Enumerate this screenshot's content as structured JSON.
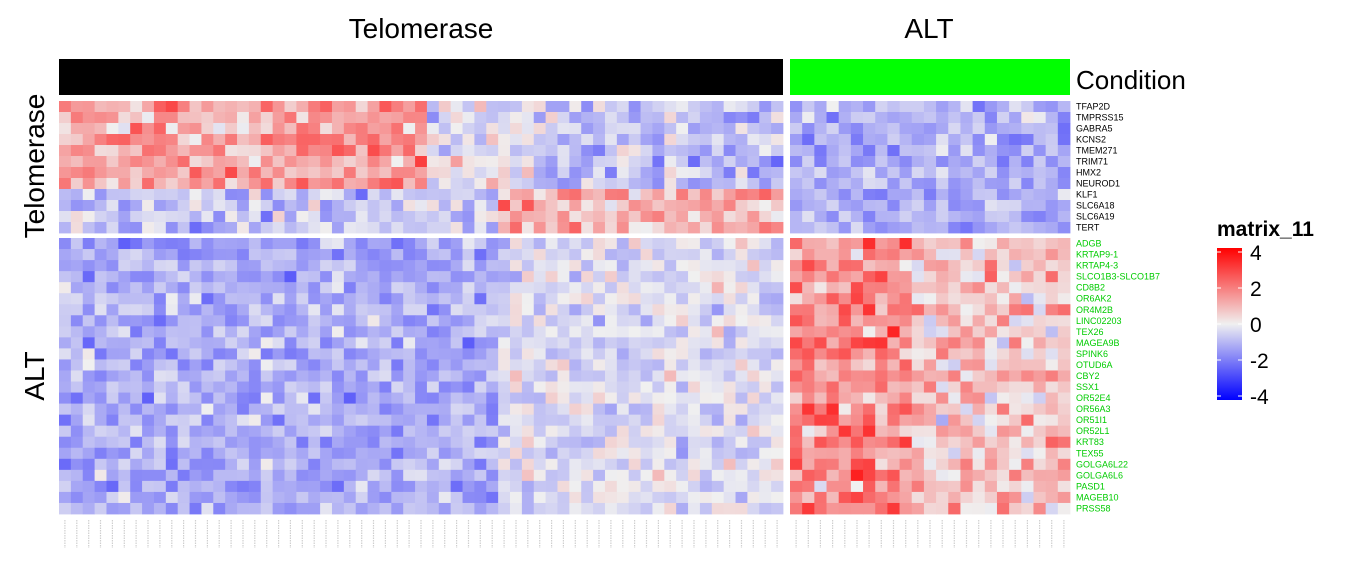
{
  "chart_data": {
    "type": "heatmap",
    "column_groups": [
      {
        "name": "Telomerase",
        "n_samples": 61,
        "annotation_color": "#000000"
      },
      {
        "name": "ALT",
        "n_samples": 23,
        "annotation_color": "#00ff00"
      }
    ],
    "annotation_label": "Condition",
    "row_groups": [
      {
        "name": "Telomerase",
        "label_color": "#000000",
        "genes": [
          "TFAP2D",
          "TMPRSS15",
          "GABRA5",
          "KCNS2",
          "TMEM271",
          "TRIM71",
          "HMX2",
          "NEUROD1",
          "KLF1",
          "SLC6A18",
          "SLC6A19",
          "TERT"
        ]
      },
      {
        "name": "ALT",
        "label_color": "#00cc00",
        "genes": [
          "ADGB",
          "KRTAP9-1",
          "KRTAP4-3",
          "SLCO1B3-SLCO1B7",
          "CD8B2",
          "OR6AK2",
          "OR4M2B",
          "LINC02203",
          "TEX26",
          "MAGEA9B",
          "SPINK6",
          "OTUD6A",
          "CBY2",
          "SSX1",
          "OR52E4",
          "OR56A3",
          "OR51I1",
          "OR52L1",
          "KRT83",
          "TEX55",
          "GOLGA6L22",
          "GOLGA6L6",
          "PASD1",
          "MAGEB10",
          "PRSS58"
        ]
      }
    ],
    "legend": {
      "title": "matrix_11",
      "ticks": [
        4,
        2,
        0,
        -2,
        -4
      ],
      "range": [
        -4,
        4
      ],
      "colors": {
        "low": "#0000ff",
        "mid": "#f0f0f0",
        "high": "#ff0000"
      }
    }
  }
}
